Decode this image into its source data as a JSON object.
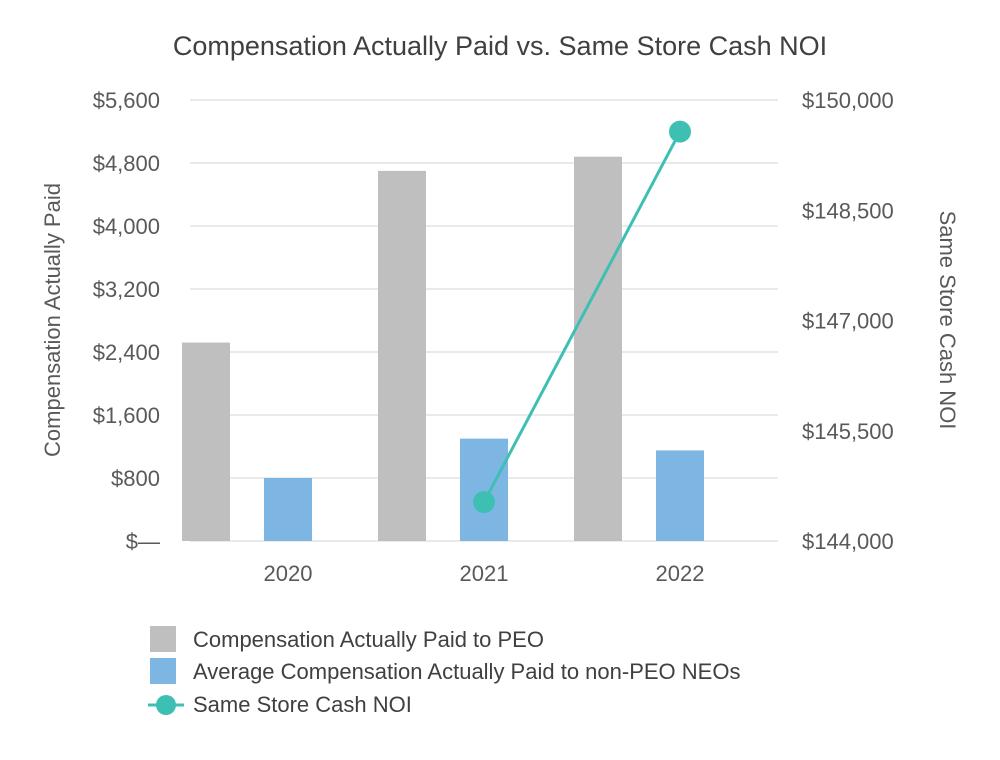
{
  "chart_data": {
    "type": "bar",
    "title": "Compensation Actually Paid vs. Same Store Cash NOI",
    "categories": [
      "2020",
      "2021",
      "2022"
    ],
    "ylabel_left": "Compensation Actually Paid",
    "ylabel_right": "Same Store Cash NOI",
    "ylim_left": [
      0,
      5600
    ],
    "ylim_right": [
      144000,
      150000
    ],
    "left_ticks": [
      0,
      800,
      1600,
      2400,
      3200,
      4000,
      4800,
      5600
    ],
    "left_tick_labels": [
      "$—",
      "$800",
      "$1,600",
      "$2,400",
      "$3,200",
      "$4,000",
      "$4,800",
      "$5,600"
    ],
    "right_ticks": [
      144000,
      145500,
      147000,
      148500,
      150000
    ],
    "right_tick_labels": [
      "$144,000",
      "$145,500",
      "$147,000",
      "$148,500",
      "$150,000"
    ],
    "grid": true,
    "legend_position": "bottom",
    "series": [
      {
        "name": "Compensation Actually Paid to PEO",
        "type": "bar",
        "axis": "left",
        "color": "#bfbfbf",
        "values": [
          2520,
          4700,
          4880
        ]
      },
      {
        "name": "Average Compensation Actually Paid to non-PEO NEOs",
        "type": "bar",
        "axis": "left",
        "color": "#7eb6e3",
        "values": [
          800,
          1300,
          1150
        ]
      },
      {
        "name": "Same Store Cash NOI",
        "type": "line",
        "axis": "right",
        "color": "#3ebfb4",
        "x": [
          "2021",
          "2022"
        ],
        "values": [
          144530,
          149570
        ]
      }
    ]
  }
}
